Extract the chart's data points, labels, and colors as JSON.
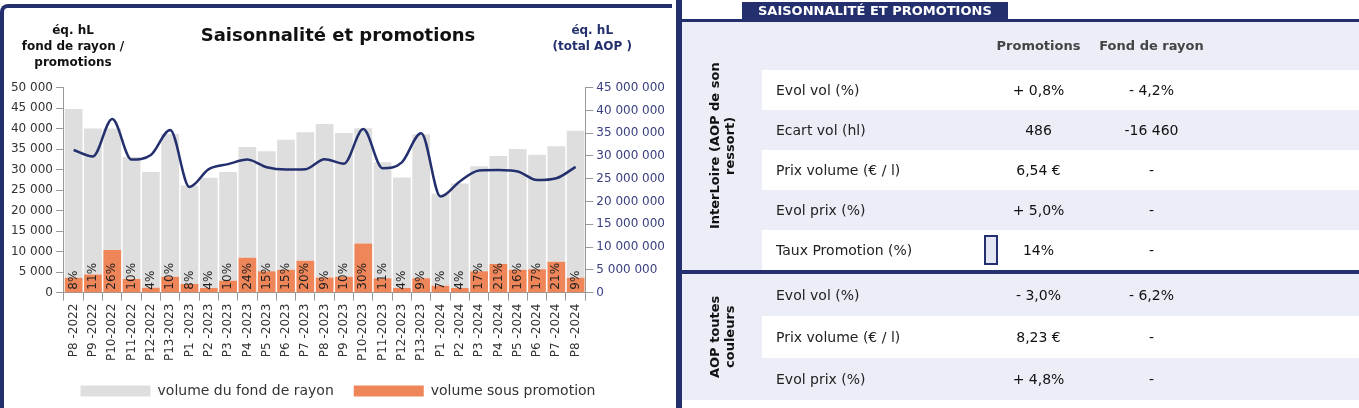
{
  "chart_data": [
    {
      "type": "bar",
      "title": "Saisonnalité et promotions",
      "ylabel": "éq. hL\nfond de rayon /\npromotions",
      "y2label": "éq. hL\n(total AOP )",
      "stacked": true,
      "legend": "bottom",
      "marker": "none",
      "categories": [
        "P8 -2022",
        "P9 -2022",
        "P10-2022",
        "P11-2022",
        "P12-2022",
        "P13-2023",
        "P1 -2023",
        "P2 -2023",
        "P3 -2023",
        "P4 -2023",
        "P5 -2023",
        "P6 -2023",
        "P7 -2023",
        "P8 -2023",
        "P9 -2023",
        "P10-2023",
        "P11-2023",
        "P12-2023",
        "P13-2023",
        "P1 -2024",
        "P2 -2024",
        "P3 -2024",
        "P4 -2024",
        "P5 -2024",
        "P6 -2024",
        "P7 -2024",
        "P8 -2024"
      ],
      "series": [
        {
          "name": "volume sous promotion",
          "color": "#ee8659",
          "values": [
            3600,
            4400,
            10400,
            3300,
            1200,
            3900,
            2100,
            1100,
            2900,
            8500,
            5200,
            5600,
            7800,
            3700,
            3900,
            12000,
            3500,
            1100,
            3500,
            1700,
            1100,
            5200,
            7000,
            5600,
            5700,
            7500,
            3600
          ]
        },
        {
          "name": "volume du fond de rayon",
          "color": "#dedede",
          "values": [
            41200,
            35600,
            29600,
            29800,
            28200,
            34800,
            24000,
            26900,
            26500,
            27000,
            29300,
            31700,
            31300,
            37400,
            35000,
            28100,
            28300,
            27000,
            35100,
            22400,
            25500,
            25600,
            26300,
            29400,
            27900,
            28200,
            35900
          ]
        },
        {
          "type": "line",
          "axis": "y2",
          "color": "#24306e",
          "values": [
            31300000,
            29900000,
            38100000,
            29200000,
            30200000,
            35700000,
            23200000,
            27100000,
            28200000,
            29200000,
            27500000,
            27000000,
            27100000,
            29300000,
            28300000,
            35900000,
            27300000,
            28600000,
            35000000,
            21100000,
            24400000,
            26800000,
            26900000,
            26600000,
            24700000,
            25100000,
            27600000
          ]
        }
      ],
      "annotations": [
        {
          "text": "8%",
          "x": "P8 -2022",
          "y": 0
        },
        {
          "text": "11%",
          "x": "P9 -2022",
          "y": 0
        },
        {
          "text": "26%",
          "x": "P10-2022",
          "y": 0
        },
        {
          "text": "10%",
          "x": "P11-2022",
          "y": 0
        },
        {
          "text": "4%",
          "x": "P12-2022",
          "y": 0
        },
        {
          "text": "10%",
          "x": "P13-2023",
          "y": 0
        },
        {
          "text": "8%",
          "x": "P1 -2023",
          "y": 0
        },
        {
          "text": "4%",
          "x": "P2 -2023",
          "y": 0
        },
        {
          "text": "10%",
          "x": "P3 -2023",
          "y": 0
        },
        {
          "text": "24%",
          "x": "P4 -2023",
          "y": 0
        },
        {
          "text": "15%",
          "x": "P5 -2023",
          "y": 0
        },
        {
          "text": "15%",
          "x": "P6 -2023",
          "y": 0
        },
        {
          "text": "20%",
          "x": "P7 -2023",
          "y": 0
        },
        {
          "text": "9%",
          "x": "P8 -2023",
          "y": 0
        },
        {
          "text": "10%",
          "x": "P9 -2023",
          "y": 0
        },
        {
          "text": "30%",
          "x": "P10-2023",
          "y": 0
        },
        {
          "text": "11%",
          "x": "P11-2023",
          "y": 0
        },
        {
          "text": "4%",
          "x": "P12-2023",
          "y": 0
        },
        "9%",
        {
          "text": "7%",
          "x": "P1 -2024",
          "y": 0
        },
        {
          "text": "4%",
          "x": "P2 -2024",
          "y": 0
        },
        {
          "text": "17%",
          "x": "P3 -2024",
          "y": 0
        },
        {
          "text": "21%",
          "x": "P4 -2024",
          "y": 0
        },
        {
          "text": "16%",
          "x": "P5 -2024",
          "y": 0
        },
        {
          "text": "17%",
          "x": "P6 -2024",
          "y": 0
        },
        {
          "text": "21%",
          "x": "P7 -2024",
          "y": 0
        },
        {
          "text": "9%",
          "x": "P8 -2024",
          "y": 0
        }
      ],
      "ylim": [
        0,
        50000
      ],
      "yticks": [
        {
          "value": 0,
          "label": "0"
        },
        {
          "value": 5000,
          "label": "5 000"
        },
        {
          "value": 10000,
          "label": "10 000"
        },
        {
          "value": 15000,
          "label": "15 000"
        },
        {
          "value": 20000,
          "label": "20 000"
        },
        {
          "value": 25000,
          "label": "25 000"
        },
        {
          "value": 30000,
          "label": "30 000"
        },
        {
          "value": 35000,
          "label": "35 000"
        },
        {
          "value": 40000,
          "label": "40 000"
        },
        {
          "value": 45000,
          "label": "45 000"
        },
        {
          "value": 50000,
          "label": "50 000"
        }
      ],
      "y2lim": [
        0,
        45000000
      ],
      "y2ticks": [
        {
          "value": 0,
          "label": "0"
        },
        {
          "value": 5000000,
          "label": "5 000 000"
        },
        {
          "value": 10000000,
          "label": "10 000 000"
        },
        {
          "value": 15000000,
          "label": "15 000 000"
        },
        {
          "value": 20000000,
          "label": "20 000 000"
        },
        {
          "value": 25000000,
          "label": "25 000 000"
        },
        {
          "value": 30000000,
          "label": "30 000 000"
        },
        {
          "value": 35000000,
          "label": "35 000 000"
        },
        {
          "value": 40000000,
          "label": "40 000 000"
        },
        {
          "value": 45000000,
          "label": "45 000 000"
        }
      ]
    },
    {
      "type": "other",
      "title": "InterLoire (AOP de son ressort)",
      "annotations": [
        "SAISONNALITÉ ET PROMOTIONS"
      ],
      "categories": [
        "Promotions",
        "Fond de rayon"
      ],
      "y_categories": [
        "Evol vol (%)",
        "Ecart vol (hl)",
        "Prix volume (€ / l)",
        "Evol prix (%)",
        "Taux Promotion (%)"
      ],
      "cell_labels": [
        [
          "+ 0,8%",
          "- 4,2%"
        ],
        [
          "486",
          "-16 460"
        ],
        [
          "6,54 €",
          "-"
        ],
        [
          "+ 5,0%",
          "-"
        ],
        [
          "14%",
          "-"
        ]
      ]
    },
    {
      "type": "other",
      "title": "AOP toutes couleurs",
      "y_categories": [
        "Evol vol (%)",
        "Prix volume (€ / l)",
        "Evol prix (%)"
      ],
      "cell_labels": [
        [
          "- 3,0%",
          "- 6,2%"
        ],
        [
          "8,23 €",
          "-"
        ],
        [
          "+ 4,8%",
          "-"
        ]
      ]
    }
  ]
}
